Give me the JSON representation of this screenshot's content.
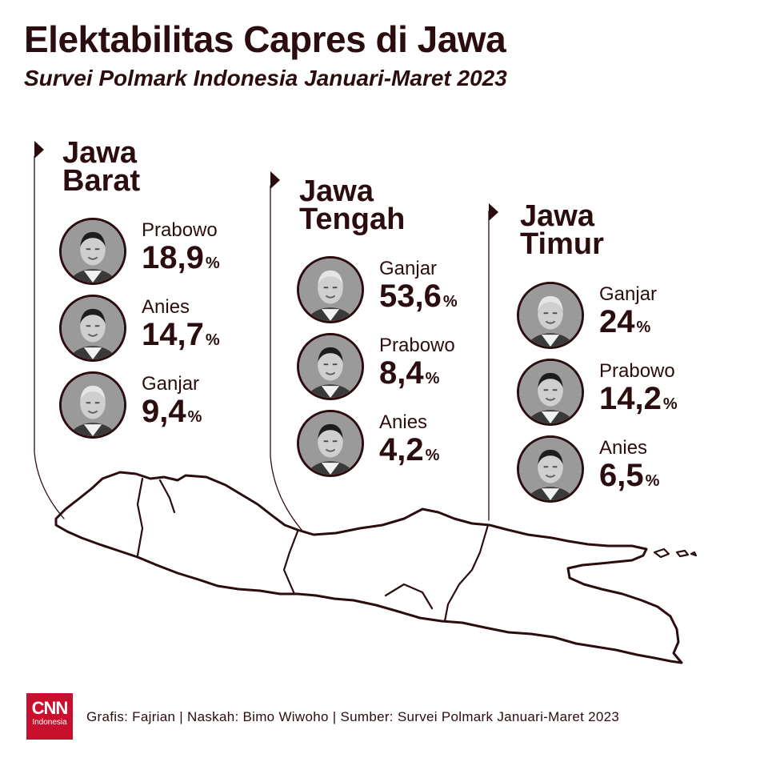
{
  "header": {
    "title": "Elektabilitas Capres di Jawa",
    "subtitle": "Survei Polmark Indonesia Januari-Maret 2023"
  },
  "colors": {
    "text": "#2b0d0f",
    "logo": "#c8102e",
    "background": "#ffffff"
  },
  "chart_data": {
    "type": "table",
    "unit": "%",
    "regions": [
      {
        "name_line1": "Jawa",
        "name_line2": "Barat",
        "candidates": [
          {
            "name": "Prabowo",
            "value": 18.9,
            "value_text": "18,9",
            "unit": "%",
            "icon": "prabowo-portrait"
          },
          {
            "name": "Anies",
            "value": 14.7,
            "value_text": "14,7",
            "unit": "%",
            "icon": "anies-portrait"
          },
          {
            "name": "Ganjar",
            "value": 9.4,
            "value_text": "9,4",
            "unit": "%",
            "icon": "ganjar-portrait"
          }
        ]
      },
      {
        "name_line1": "Jawa",
        "name_line2": "Tengah",
        "candidates": [
          {
            "name": "Ganjar",
            "value": 53.6,
            "value_text": "53,6",
            "unit": "%",
            "icon": "ganjar-portrait"
          },
          {
            "name": "Prabowo",
            "value": 8.4,
            "value_text": "8,4",
            "unit": "%",
            "icon": "prabowo-portrait"
          },
          {
            "name": "Anies",
            "value": 4.2,
            "value_text": "4,2",
            "unit": "%",
            "icon": "anies-portrait"
          }
        ]
      },
      {
        "name_line1": "Jawa",
        "name_line2": "Timur",
        "candidates": [
          {
            "name": "Ganjar",
            "value": 24,
            "value_text": "24",
            "unit": "%",
            "icon": "ganjar-portrait"
          },
          {
            "name": "Prabowo",
            "value": 14.2,
            "value_text": "14,2",
            "unit": "%",
            "icon": "prabowo-portrait"
          },
          {
            "name": "Anies",
            "value": 6.5,
            "value_text": "6,5",
            "unit": "%",
            "icon": "anies-portrait"
          }
        ]
      }
    ]
  },
  "footer": {
    "logo_line1": "CNN",
    "logo_line2": "Indonesia",
    "credit": "Grafis: Fajrian | Naskah: Bimo Wiwoho | Sumber: Survei Polmark Januari-Maret 2023"
  }
}
